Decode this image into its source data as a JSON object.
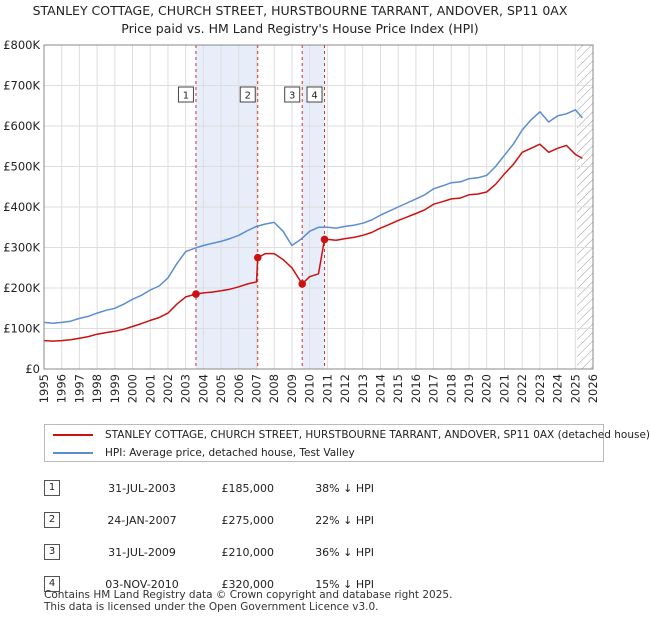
{
  "header": {
    "title_line1": "STANLEY COTTAGE, CHURCH STREET, HURSTBOURNE TARRANT, ANDOVER, SP11 0AX",
    "title_line2": "Price paid vs. HM Land Registry's House Price Index (HPI)"
  },
  "chart_data": {
    "type": "line",
    "title": "STANLEY COTTAGE, CHURCH STREET, HURSTBOURNE TARRANT, ANDOVER, SP11 0AX — Price paid vs. HM Land Registry's House Price Index (HPI)",
    "xlabel": "",
    "ylabel": "",
    "xlim": [
      1995,
      2026
    ],
    "ylim": [
      0,
      800000
    ],
    "grid": true,
    "y_ticks": [
      0,
      100000,
      200000,
      300000,
      400000,
      500000,
      600000,
      700000,
      800000
    ],
    "y_tick_labels": [
      "£0",
      "£100K",
      "£200K",
      "£300K",
      "£400K",
      "£500K",
      "£600K",
      "£700K",
      "£800K"
    ],
    "x_ticks": [
      1995,
      1996,
      1997,
      1998,
      1999,
      2000,
      2001,
      2002,
      2003,
      2004,
      2005,
      2006,
      2007,
      2008,
      2009,
      2010,
      2011,
      2012,
      2013,
      2014,
      2015,
      2016,
      2017,
      2018,
      2019,
      2020,
      2021,
      2022,
      2023,
      2024,
      2025,
      2026
    ],
    "x_tick_labels": [
      "1995",
      "1996",
      "1997",
      "1998",
      "1999",
      "2000",
      "2001",
      "2002",
      "2003",
      "2004",
      "2005",
      "2006",
      "2007",
      "2008",
      "2009",
      "2010",
      "2011",
      "2012",
      "2013",
      "2014",
      "2015",
      "2016",
      "2017",
      "2018",
      "2019",
      "2020",
      "2021",
      "2022",
      "2023",
      "2024",
      "2025",
      "2026"
    ],
    "shaded_spans": [
      [
        2003.58,
        2007.07
      ],
      [
        2009.58,
        2010.84
      ]
    ],
    "future_hatch_from": 2025.1,
    "series": [
      {
        "name": "HPI: Average price, detached house, Test Valley",
        "color": "#5b8dd0",
        "x": [
          1995.0,
          1995.5,
          1996.0,
          1996.5,
          1997.0,
          1997.5,
          1998.0,
          1998.5,
          1999.0,
          1999.5,
          2000.0,
          2000.5,
          2001.0,
          2001.5,
          2002.0,
          2002.5,
          2003.0,
          2003.5,
          2004.0,
          2004.5,
          2005.0,
          2005.5,
          2006.0,
          2006.5,
          2007.0,
          2007.5,
          2008.0,
          2008.5,
          2009.0,
          2009.5,
          2010.0,
          2010.5,
          2011.0,
          2011.5,
          2012.0,
          2012.5,
          2013.0,
          2013.5,
          2014.0,
          2014.5,
          2015.0,
          2015.5,
          2016.0,
          2016.5,
          2017.0,
          2017.5,
          2018.0,
          2018.5,
          2019.0,
          2019.5,
          2020.0,
          2020.5,
          2021.0,
          2021.5,
          2022.0,
          2022.5,
          2023.0,
          2023.5,
          2024.0,
          2024.5,
          2025.0,
          2025.4
        ],
        "values": [
          115000,
          113000,
          115000,
          118000,
          125000,
          130000,
          138000,
          145000,
          150000,
          160000,
          172000,
          182000,
          195000,
          205000,
          225000,
          260000,
          290000,
          298000,
          305000,
          310000,
          315000,
          322000,
          330000,
          342000,
          352000,
          358000,
          362000,
          340000,
          305000,
          320000,
          340000,
          350000,
          350000,
          348000,
          352000,
          355000,
          360000,
          368000,
          380000,
          390000,
          400000,
          410000,
          420000,
          430000,
          445000,
          452000,
          460000,
          462000,
          470000,
          472000,
          478000,
          500000,
          528000,
          555000,
          590000,
          615000,
          635000,
          610000,
          625000,
          630000,
          640000,
          620000
        ]
      },
      {
        "name": "STANLEY COTTAGE, CHURCH STREET, HURSTBOURNE TARRANT, ANDOVER, SP11 0AX (detached house)",
        "color": "#cc1111",
        "x": [
          1995.0,
          1995.5,
          1996.0,
          1996.5,
          1997.0,
          1997.5,
          1998.0,
          1998.5,
          1999.0,
          1999.5,
          2000.0,
          2000.5,
          2001.0,
          2001.5,
          2002.0,
          2002.5,
          2003.0,
          2003.58,
          2004.0,
          2004.5,
          2005.0,
          2005.5,
          2006.0,
          2006.5,
          2007.0,
          2007.07,
          2007.5,
          2008.0,
          2008.5,
          2009.0,
          2009.58,
          2010.0,
          2010.5,
          2010.84,
          2011.0,
          2011.5,
          2012.0,
          2012.5,
          2013.0,
          2013.5,
          2014.0,
          2014.5,
          2015.0,
          2015.5,
          2016.0,
          2016.5,
          2017.0,
          2017.5,
          2018.0,
          2018.5,
          2019.0,
          2019.5,
          2020.0,
          2020.5,
          2021.0,
          2021.5,
          2022.0,
          2022.5,
          2023.0,
          2023.5,
          2024.0,
          2024.5,
          2025.0,
          2025.4
        ],
        "values": [
          70000,
          69000,
          70000,
          72000,
          76000,
          80000,
          86000,
          90000,
          93000,
          98000,
          105000,
          112000,
          120000,
          127000,
          138000,
          160000,
          178000,
          185000,
          188000,
          190000,
          193000,
          197000,
          203000,
          210000,
          215000,
          275000,
          285000,
          285000,
          270000,
          250000,
          210000,
          228000,
          235000,
          320000,
          320000,
          318000,
          322000,
          325000,
          330000,
          337000,
          348000,
          357000,
          367000,
          375000,
          384000,
          393000,
          407000,
          413000,
          420000,
          422000,
          430000,
          432000,
          437000,
          456000,
          482000,
          505000,
          535000,
          545000,
          555000,
          535000,
          545000,
          552000,
          530000,
          520000
        ]
      }
    ],
    "sale_markers": [
      {
        "label": "1",
        "x": 2003.58,
        "value": 185000
      },
      {
        "label": "2",
        "x": 2007.07,
        "value": 275000
      },
      {
        "label": "3",
        "x": 2009.58,
        "value": 210000
      },
      {
        "label": "4",
        "x": 2010.84,
        "value": 320000
      }
    ]
  },
  "legend": {
    "property_label": "STANLEY COTTAGE, CHURCH STREET, HURSTBOURNE TARRANT, ANDOVER, SP11 0AX (detached house)",
    "hpi_label": "HPI: Average price, detached house, Test Valley",
    "property_color": "#cc1111",
    "hpi_color": "#5b8dd0"
  },
  "events": [
    {
      "num": "1",
      "date": "31-JUL-2003",
      "price": "£185,000",
      "hpi": "38% ↓ HPI"
    },
    {
      "num": "2",
      "date": "24-JAN-2007",
      "price": "£275,000",
      "hpi": "22% ↓ HPI"
    },
    {
      "num": "3",
      "date": "31-JUL-2009",
      "price": "£210,000",
      "hpi": "36% ↓ HPI"
    },
    {
      "num": "4",
      "date": "03-NOV-2010",
      "price": "£320,000",
      "hpi": "15% ↓ HPI"
    }
  ],
  "footer": {
    "line1": "Contains HM Land Registry data © Crown copyright and database right 2025.",
    "line2": "This data is licensed under the Open Government Licence v3.0."
  }
}
